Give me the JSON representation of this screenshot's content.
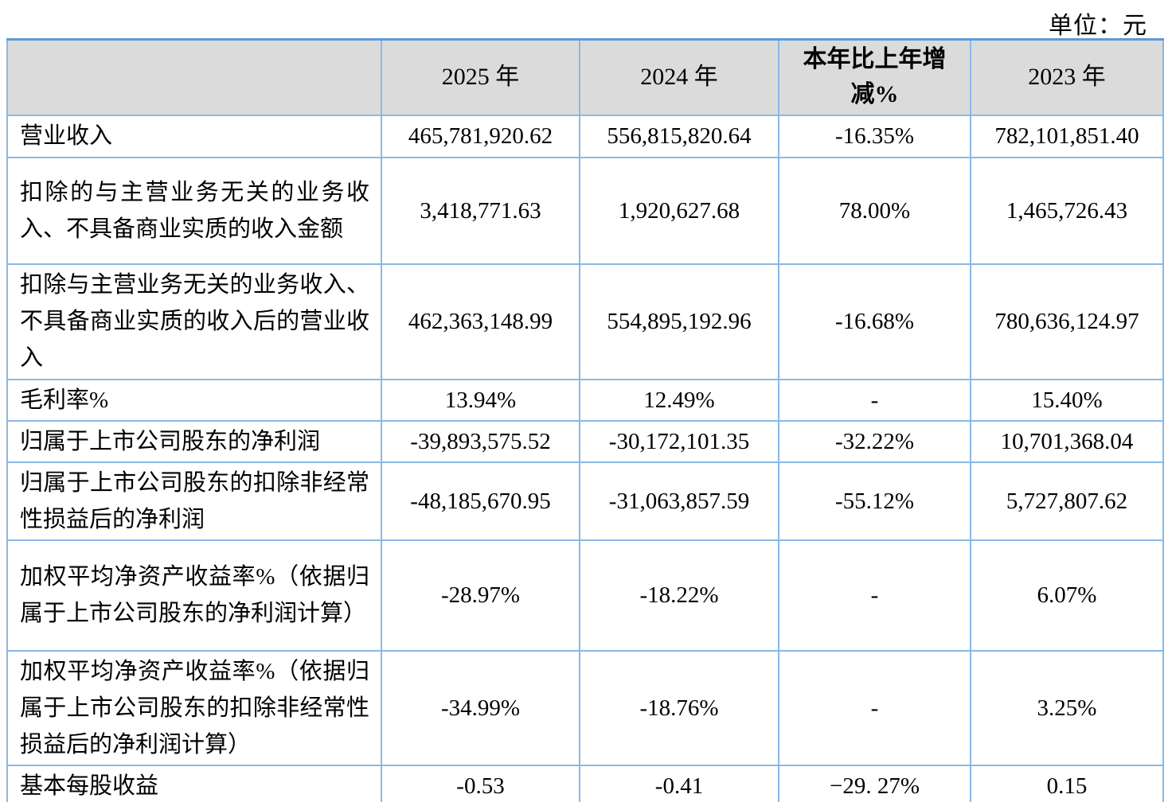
{
  "meta": {
    "unit_label": "单位：元"
  },
  "colors": {
    "border": "#8ab8e6",
    "border-outer": "#5b9bd5",
    "border-bottom": "#3e78b8",
    "header-bg": "#dbdbdb"
  },
  "table": {
    "header": {
      "col0": "",
      "col1": "2025 年",
      "col2": "2024 年",
      "col3": "本年比上年增减%",
      "col4": "2023 年"
    },
    "rows": [
      {
        "label": "营业收入",
        "y2025": "465,781,920.62",
        "y2024": "556,815,820.64",
        "yoy": "-16.35%",
        "y2023": "782,101,851.40"
      },
      {
        "label": "扣除的与主营业务无关的业务收入、不具备商业实质的收入金额",
        "y2025": "3,418,771.63",
        "y2024": "1,920,627.68",
        "yoy": "78.00%",
        "y2023": "1,465,726.43"
      },
      {
        "label": "扣除与主营业务无关的业务收入、不具备商业实质的收入后的营业收入",
        "y2025": "462,363,148.99",
        "y2024": "554,895,192.96",
        "yoy": "-16.68%",
        "y2023": "780,636,124.97"
      },
      {
        "label": "毛利率%",
        "y2025": "13.94%",
        "y2024": "12.49%",
        "yoy": "-",
        "y2023": "15.40%"
      },
      {
        "label": "归属于上市公司股东的净利润",
        "y2025": "-39,893,575.52",
        "y2024": "-30,172,101.35",
        "yoy": "-32.22%",
        "y2023": "10,701,368.04"
      },
      {
        "label": "归属于上市公司股东的扣除非经常性损益后的净利润",
        "y2025": "-48,185,670.95",
        "y2024": "-31,063,857.59",
        "yoy": "-55.12%",
        "y2023": "5,727,807.62"
      },
      {
        "label": "加权平均净资产收益率%（依据归属于上市公司股东的净利润计算）",
        "y2025": "-28.97%",
        "y2024": "-18.22%",
        "yoy": "-",
        "y2023": "6.07%"
      },
      {
        "label": "加权平均净资产收益率%（依据归属于上市公司股东的扣除非经常性损益后的净利润计算）",
        "y2025": "-34.99%",
        "y2024": "-18.76%",
        "yoy": "-",
        "y2023": "3.25%"
      },
      {
        "label": "基本每股收益",
        "y2025": "-0.53",
        "y2024": "-0.41",
        "yoy": "−29. 27%",
        "y2023": "0.15"
      }
    ]
  }
}
